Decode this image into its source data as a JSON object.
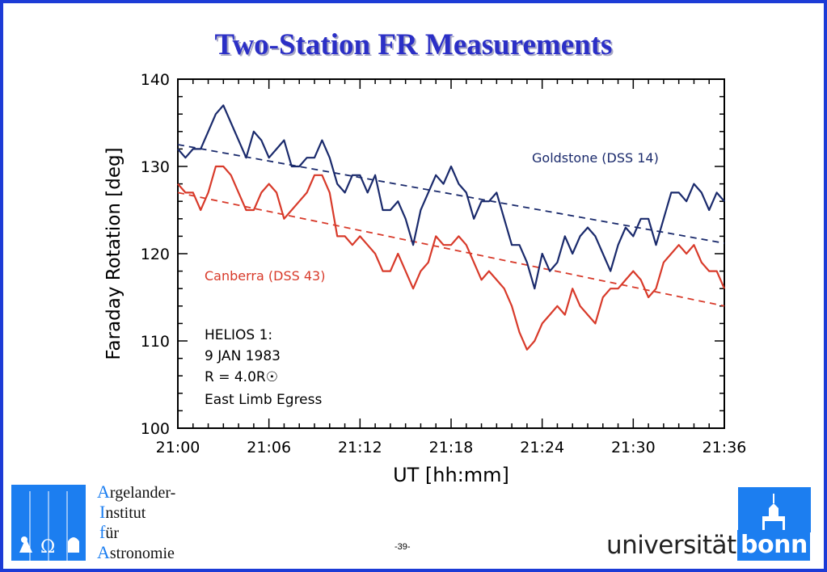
{
  "title": "Two-Station FR Measurements",
  "page_number": "-39-",
  "institute_lines": [
    {
      "first": "A",
      "rest": "rgelander-"
    },
    {
      "first": "I",
      "rest": "nstitut"
    },
    {
      "first": "f",
      "rest": "ür"
    },
    {
      "first": "A",
      "rest": "stronomie"
    }
  ],
  "university": {
    "word": "universität",
    "brand": "bonn"
  },
  "colors": {
    "accent": "#1c3bd6",
    "goldstone": "#1a2a6c",
    "canberra": "#d83a2a",
    "logo_blue": "#1c7ef0"
  },
  "chart_data": {
    "type": "line",
    "xlabel": "UT [hh:mm]",
    "ylabel": "Faraday Rotation [deg]",
    "xlim": [
      0,
      36
    ],
    "ylim": [
      100,
      140
    ],
    "x_ticks": [
      0,
      6,
      12,
      18,
      24,
      30,
      36
    ],
    "x_tick_labels": [
      "21:00",
      "21:06",
      "21:12",
      "21:18",
      "21:24",
      "21:30",
      "21:36"
    ],
    "y_ticks": [
      100,
      110,
      120,
      130,
      140
    ],
    "y_tick_labels": [
      "100",
      "110",
      "120",
      "130",
      "140"
    ],
    "series": [
      {
        "name": "Goldstone (DSS 14)",
        "color": "#1a2a6c",
        "x": [
          0,
          0.5,
          1,
          1.5,
          2,
          2.5,
          3,
          3.5,
          4,
          4.5,
          5,
          5.5,
          6,
          6.5,
          7,
          7.5,
          8,
          8.5,
          9,
          9.5,
          10,
          10.5,
          11,
          11.5,
          12,
          12.5,
          13,
          13.5,
          14,
          14.5,
          15,
          15.5,
          16,
          16.5,
          17,
          17.5,
          18,
          18.5,
          19,
          19.5,
          20,
          20.5,
          21,
          21.5,
          22,
          22.5,
          23,
          23.5,
          24,
          24.5,
          25,
          25.5,
          26,
          26.5,
          27,
          27.5,
          28,
          28.5,
          29,
          29.5,
          30,
          30.5,
          31,
          31.5,
          32,
          32.5,
          33,
          33.5,
          34,
          34.5,
          35,
          35.5,
          36
        ],
        "values": [
          132,
          131,
          132,
          132,
          134,
          136,
          137,
          135,
          133,
          131,
          134,
          133,
          131,
          132,
          133,
          130,
          130,
          131,
          131,
          133,
          131,
          128,
          127,
          129,
          129,
          127,
          129,
          125,
          125,
          126,
          124,
          121,
          125,
          127,
          129,
          128,
          130,
          128,
          127,
          124,
          126,
          126,
          127,
          124,
          121,
          121,
          119,
          116,
          120,
          118,
          119,
          122,
          120,
          122,
          123,
          122,
          120,
          118,
          121,
          123,
          122,
          124,
          124,
          121,
          124,
          127,
          127,
          126,
          128,
          127,
          125,
          127,
          126
        ]
      },
      {
        "name": "Canberra (DSS 43)",
        "color": "#d83a2a",
        "x": [
          0,
          0.5,
          1,
          1.5,
          2,
          2.5,
          3,
          3.5,
          4,
          4.5,
          5,
          5.5,
          6,
          6.5,
          7,
          7.5,
          8,
          8.5,
          9,
          9.5,
          10,
          10.5,
          11,
          11.5,
          12,
          12.5,
          13,
          13.5,
          14,
          14.5,
          15,
          15.5,
          16,
          16.5,
          17,
          17.5,
          18,
          18.5,
          19,
          19.5,
          20,
          20.5,
          21,
          21.5,
          22,
          22.5,
          23,
          23.5,
          24,
          24.5,
          25,
          25.5,
          26,
          26.5,
          27,
          27.5,
          28,
          28.5,
          29,
          29.5,
          30,
          30.5,
          31,
          31.5,
          32,
          32.5,
          33,
          33.5,
          34,
          34.5,
          35,
          35.5,
          36
        ],
        "values": [
          128,
          127,
          127,
          125,
          127,
          130,
          130,
          129,
          127,
          125,
          125,
          127,
          128,
          127,
          124,
          125,
          126,
          127,
          129,
          129,
          127,
          122,
          122,
          121,
          122,
          121,
          120,
          118,
          118,
          120,
          118,
          116,
          118,
          119,
          122,
          121,
          121,
          122,
          121,
          119,
          117,
          118,
          117,
          116,
          114,
          111,
          109,
          110,
          112,
          113,
          114,
          113,
          116,
          114,
          113,
          112,
          115,
          116,
          116,
          117,
          118,
          117,
          115,
          116,
          119,
          120,
          121,
          120,
          121,
          119,
          118,
          118,
          116
        ]
      }
    ],
    "reference_lines": [
      {
        "name": "Goldstone trend",
        "color": "#1a2a6c",
        "style": "dashed",
        "from": [
          0,
          132.5
        ],
        "to": [
          36,
          121.2
        ]
      },
      {
        "name": "Canberra trend",
        "color": "#d83a2a",
        "style": "dashed",
        "from": [
          0,
          127
        ],
        "to": [
          36,
          114
        ]
      }
    ],
    "annotations": [
      {
        "text": "HELIOS 1:"
      },
      {
        "text": "9 JAN 1983"
      },
      {
        "text": "R = 4.0R☉"
      },
      {
        "text": "East Limb Egress"
      }
    ],
    "grid": false
  }
}
